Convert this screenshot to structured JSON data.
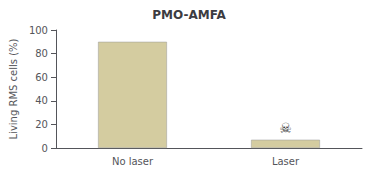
{
  "chart_data": {
    "type": "bar",
    "title": "PMO-AMFA",
    "categories": [
      "No laser",
      "Laser"
    ],
    "values": [
      90,
      7
    ],
    "color": "#d4cca0",
    "ylabel": "Living RMS cells (%)",
    "ylim": [
      0,
      100
    ],
    "yticks": [
      0,
      20,
      40,
      60,
      80,
      100
    ],
    "grid": false,
    "annotations": [
      {
        "text": "☠",
        "category": "Laser"
      }
    ]
  }
}
